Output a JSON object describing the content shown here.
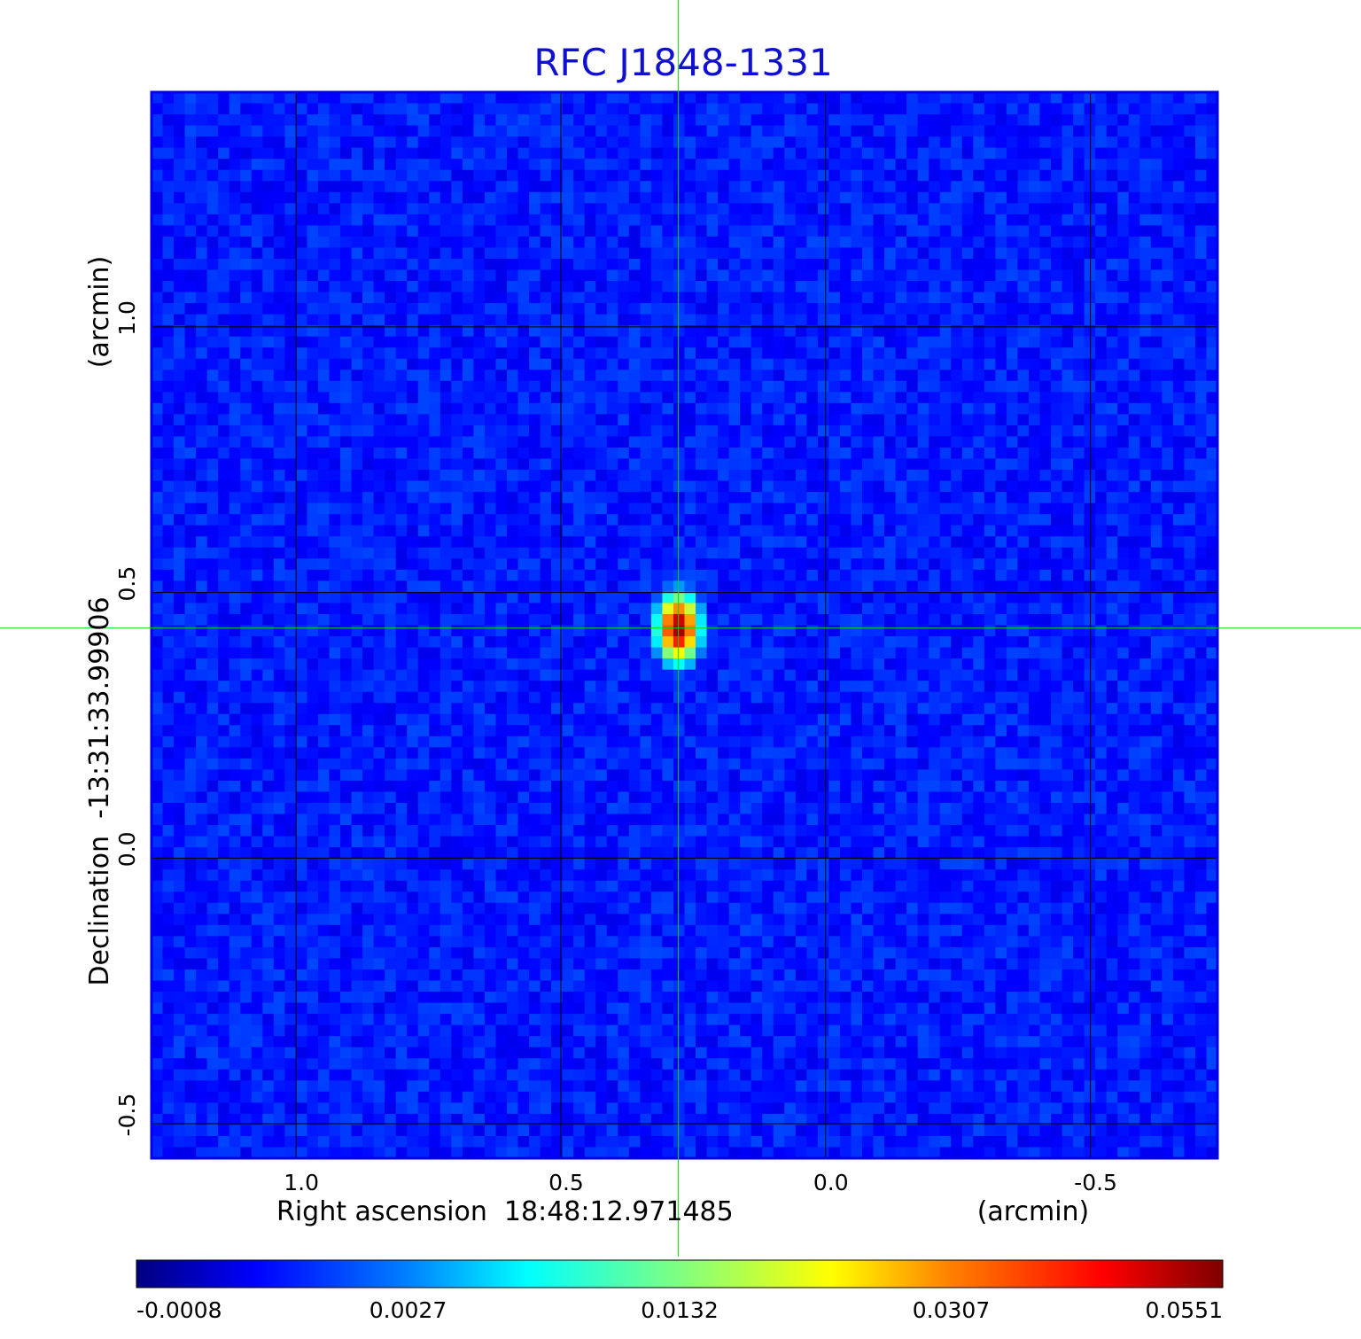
{
  "chart_data": {
    "type": "heatmap",
    "title": "RFC J1848-1331",
    "xlabel": "Right ascension  18:48:12.971485",
    "xunit": "(arcmin)",
    "ylabel": "Declination  -13:31:33.99906",
    "yunit": "(arcmin)",
    "x_ticks": [
      {
        "value": 1.0,
        "label": "1.0"
      },
      {
        "value": 0.5,
        "label": "0.5"
      },
      {
        "value": 0.0,
        "label": "0.0"
      },
      {
        "value": -0.5,
        "label": "-0.5"
      }
    ],
    "y_ticks": [
      {
        "value": 1.0,
        "label": "1.0"
      },
      {
        "value": 0.5,
        "label": "0.5"
      },
      {
        "value": 0.0,
        "label": "0.0"
      },
      {
        "value": -0.5,
        "label": "-0.5"
      }
    ],
    "xlim": [
      1.273,
      -0.74
    ],
    "ylim": [
      -0.565,
      1.442
    ],
    "grid": true,
    "crosshair": {
      "x": 0.278,
      "y": 0.433,
      "color": "#00dd00"
    },
    "source": {
      "x": 0.278,
      "y": 0.433,
      "peak": 0.0551,
      "sigma_x": 0.022,
      "sigma_y": 0.035
    },
    "colormap": "jet",
    "colorbar": {
      "orientation": "horizontal",
      "ticks": [
        "-0.0008",
        "0.0027",
        "0.0132",
        "0.0307",
        "0.0551"
      ]
    }
  }
}
